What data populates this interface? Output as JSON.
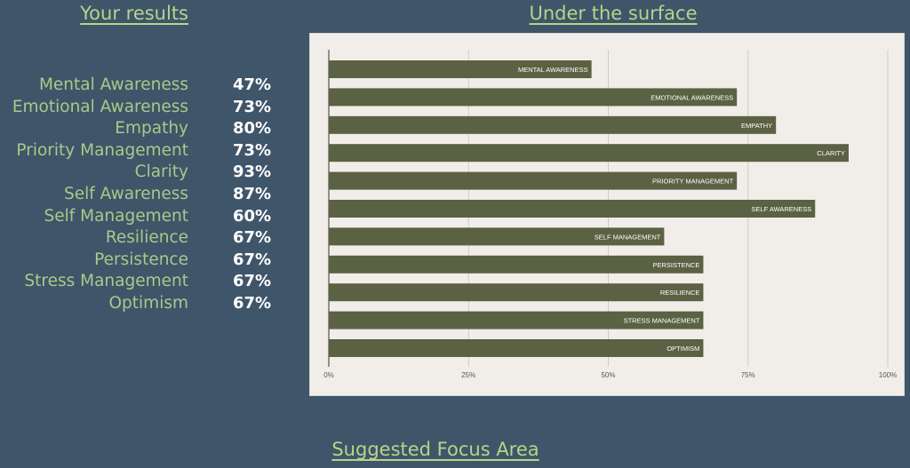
{
  "headings": {
    "results": "Your results",
    "surface": "Under the surface",
    "focus": "Suggested Focus Area"
  },
  "results": [
    {
      "label": "Mental Awareness",
      "value": "47%"
    },
    {
      "label": "Emotional Awareness",
      "value": "73%"
    },
    {
      "label": "Empathy",
      "value": "80%"
    },
    {
      "label": "Priority Management",
      "value": "73%"
    },
    {
      "label": "Clarity",
      "value": "93%"
    },
    {
      "label": "Self Awareness",
      "value": "87%"
    },
    {
      "label": "Self Management",
      "value": "60%"
    },
    {
      "label": "Resilience",
      "value": "67%"
    },
    {
      "label": "Persistence",
      "value": "67%"
    },
    {
      "label": "Stress Management",
      "value": "67%"
    },
    {
      "label": "Optimism",
      "value": "67%"
    }
  ],
  "colors": {
    "background": "#3f5569",
    "heading": "#b7d48a",
    "label": "#a9c98a",
    "bar": "#5b6143",
    "panel": "#f1eee9"
  },
  "chart_data": {
    "type": "bar",
    "orientation": "horizontal",
    "categories": [
      "MENTAL AWARENESS",
      "EMOTIONAL AWARENESS",
      "EMPATHY",
      "CLARITY",
      "PRIORITY MANAGEMENT",
      "SELF AWARENESS",
      "SELF MANAGEMENT",
      "PERSISTENCE",
      "RESILIENCE",
      "STRESS MANAGEMENT",
      "OPTIMISM"
    ],
    "values": [
      47,
      73,
      80,
      93,
      73,
      87,
      60,
      67,
      67,
      67,
      67
    ],
    "xlim": [
      0,
      100
    ],
    "ticks": [
      "0%",
      "25%",
      "50%",
      "75%",
      "100%"
    ],
    "tick_values": [
      0,
      25,
      50,
      75,
      100
    ],
    "grid": true,
    "legend": false
  }
}
